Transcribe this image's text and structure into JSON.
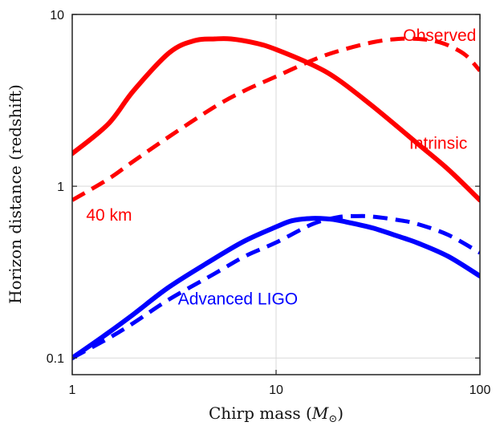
{
  "chart_data": {
    "type": "line",
    "title": "",
    "xlabel": "Chirp mass (M_⊙)",
    "xlabel_parts": {
      "prefix": "Chirp mass (",
      "symbol": "M",
      "subscript": "⊙",
      "suffix": ")"
    },
    "ylabel": "Horizon distance (redshift)",
    "xscale": "log",
    "yscale": "log",
    "xlim": [
      1,
      100
    ],
    "ylim": [
      0.08,
      10
    ],
    "grid": true,
    "x_ticks": [
      1,
      10,
      100
    ],
    "x_tick_labels": [
      "1",
      "10",
      "100"
    ],
    "y_ticks": [
      0.1,
      1,
      10
    ],
    "y_tick_labels": [
      "0.1",
      "1",
      "10"
    ],
    "series": [
      {
        "name": "Intrinsic",
        "detector": "40 km",
        "color": "#ff0000",
        "style": "solid",
        "x": [
          1,
          1.5,
          2,
          3,
          4,
          5,
          6,
          8,
          10,
          15,
          20,
          30,
          50,
          70,
          100
        ],
        "y": [
          1.55,
          2.3,
          3.6,
          6.0,
          7.05,
          7.2,
          7.2,
          6.8,
          6.25,
          5.1,
          4.2,
          2.9,
          1.75,
          1.25,
          0.83
        ]
      },
      {
        "name": "Observed",
        "detector": "40 km",
        "color": "#ff0000",
        "style": "dashed",
        "x": [
          1,
          1.5,
          2,
          3,
          5,
          7,
          10,
          15,
          20,
          30,
          40,
          50,
          60,
          70,
          85,
          100
        ],
        "y": [
          0.83,
          1.1,
          1.4,
          1.95,
          2.9,
          3.6,
          4.35,
          5.4,
          6.1,
          6.9,
          7.2,
          7.2,
          7.0,
          6.6,
          5.8,
          4.7
        ]
      },
      {
        "name": "Intrinsic",
        "detector": "Advanced LIGO",
        "color": "#0000ff",
        "style": "solid",
        "x": [
          1,
          1.5,
          2,
          3,
          5,
          7,
          10,
          12,
          15,
          18,
          20,
          25,
          30,
          40,
          50,
          70,
          100
        ],
        "y": [
          0.1,
          0.14,
          0.18,
          0.26,
          0.38,
          0.48,
          0.58,
          0.63,
          0.65,
          0.645,
          0.635,
          0.6,
          0.57,
          0.51,
          0.465,
          0.39,
          0.3
        ]
      },
      {
        "name": "Observed",
        "detector": "Advanced LIGO",
        "color": "#0000ff",
        "style": "dashed",
        "x": [
          1,
          1.5,
          2,
          3,
          5,
          7,
          10,
          15,
          20,
          25,
          30,
          40,
          50,
          70,
          100
        ],
        "y": [
          0.1,
          0.13,
          0.16,
          0.22,
          0.31,
          0.39,
          0.47,
          0.6,
          0.66,
          0.67,
          0.665,
          0.635,
          0.6,
          0.52,
          0.41
        ]
      }
    ],
    "annotations": [
      {
        "text": "Observed",
        "color": "#ff0000",
        "x": 42,
        "y": 7.0
      },
      {
        "text": "Intrinsic",
        "color": "#ff0000",
        "x": 45,
        "y": 1.65
      },
      {
        "text": "40 km",
        "color": "#ff0000",
        "x": 1.17,
        "y": 0.63
      },
      {
        "text": "Advanced LIGO",
        "color": "#0000ff",
        "x": 3.3,
        "y": 0.205
      }
    ]
  }
}
